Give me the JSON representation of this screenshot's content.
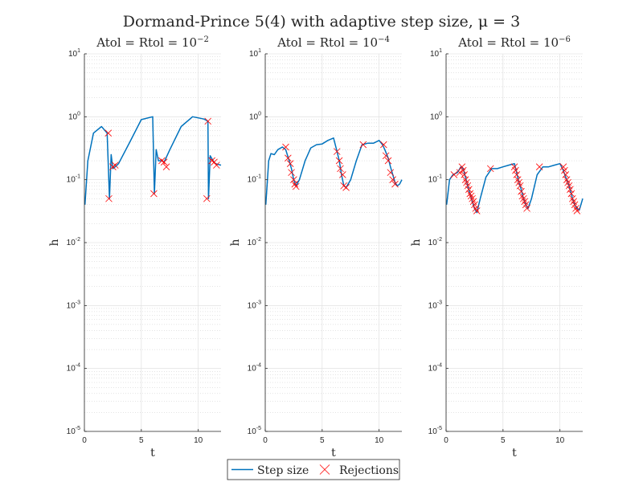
{
  "figure": {
    "suptitle": "Dormand-Prince 5(4) with adaptive step size, μ = 3"
  },
  "chart_data": [
    {
      "type": "line",
      "title": "Atol = Rtol = 10",
      "title_exponent": "−2",
      "xlabel": "t",
      "ylabel": "h",
      "yscale": "log",
      "xlim": [
        0,
        12
      ],
      "ylim": [
        1e-05,
        10
      ],
      "xticks": [
        "0",
        "5",
        "10"
      ],
      "yticks": [
        {
          "base": "10",
          "exp": "-5"
        },
        {
          "base": "10",
          "exp": "-4"
        },
        {
          "base": "10",
          "exp": "-3"
        },
        {
          "base": "10",
          "exp": "-2"
        },
        {
          "base": "10",
          "exp": "-1"
        },
        {
          "base": "10",
          "exp": "0"
        },
        {
          "base": "10",
          "exp": "1"
        }
      ],
      "grid": true,
      "series": [
        {
          "name": "Step size",
          "style": "line",
          "color": "#0072BD",
          "x": [
            0.05,
            0.3,
            0.8,
            1.5,
            2.0,
            2.2,
            2.35,
            2.5,
            2.7,
            3.0,
            4.0,
            5.0,
            6.0,
            6.15,
            6.3,
            6.5,
            6.8,
            7.0,
            7.5,
            8.5,
            9.5,
            10.5,
            10.85,
            10.9,
            11.05,
            11.3,
            11.5,
            12.0
          ],
          "y": [
            0.04,
            0.2,
            0.55,
            0.7,
            0.55,
            0.05,
            0.25,
            0.15,
            0.16,
            0.18,
            0.4,
            0.9,
            1.0,
            0.06,
            0.3,
            0.2,
            0.2,
            0.19,
            0.3,
            0.7,
            1.0,
            0.92,
            0.85,
            0.05,
            0.24,
            0.2,
            0.18,
            0.17
          ]
        },
        {
          "name": "Rejections",
          "style": "marker",
          "marker": "x",
          "color": "#FF0000",
          "x": [
            2.1,
            2.15,
            2.5,
            2.7,
            6.1,
            6.8,
            7.0,
            7.2,
            10.75,
            10.85,
            11.2,
            11.4,
            11.6
          ],
          "y": [
            0.55,
            0.05,
            0.16,
            0.17,
            0.06,
            0.2,
            0.19,
            0.16,
            0.05,
            0.85,
            0.2,
            0.19,
            0.17
          ]
        }
      ]
    },
    {
      "type": "line",
      "title": "Atol = Rtol = 10",
      "title_exponent": "−4",
      "xlabel": "t",
      "ylabel": "h",
      "yscale": "log",
      "xlim": [
        0,
        12
      ],
      "ylim": [
        1e-05,
        10
      ],
      "xticks": [
        "0",
        "5",
        "10"
      ],
      "yticks": [
        {
          "base": "10",
          "exp": "-5"
        },
        {
          "base": "10",
          "exp": "-4"
        },
        {
          "base": "10",
          "exp": "-3"
        },
        {
          "base": "10",
          "exp": "-2"
        },
        {
          "base": "10",
          "exp": "-1"
        },
        {
          "base": "10",
          "exp": "0"
        },
        {
          "base": "10",
          "exp": "1"
        }
      ],
      "grid": true,
      "series": [
        {
          "name": "Step size",
          "style": "line",
          "color": "#0072BD",
          "x": [
            0.05,
            0.3,
            0.5,
            0.8,
            1.1,
            1.5,
            1.8,
            2.1,
            2.3,
            2.5,
            2.7,
            3.0,
            3.5,
            4.0,
            4.5,
            5.0,
            5.5,
            6.0,
            6.3,
            6.5,
            6.7,
            6.9,
            7.1,
            7.5,
            8.0,
            8.5,
            9.0,
            9.5,
            10.0,
            10.3,
            10.5,
            10.8,
            11.0,
            11.2,
            11.4,
            11.6,
            11.8,
            12.0
          ],
          "y": [
            0.04,
            0.2,
            0.26,
            0.25,
            0.3,
            0.33,
            0.3,
            0.2,
            0.15,
            0.1,
            0.08,
            0.1,
            0.2,
            0.32,
            0.36,
            0.37,
            0.42,
            0.46,
            0.28,
            0.2,
            0.12,
            0.08,
            0.075,
            0.1,
            0.2,
            0.36,
            0.38,
            0.38,
            0.42,
            0.36,
            0.3,
            0.22,
            0.16,
            0.12,
            0.09,
            0.08,
            0.085,
            0.1
          ]
        },
        {
          "name": "Rejections",
          "style": "marker",
          "marker": "x",
          "color": "#FF0000",
          "x": [
            1.8,
            2.0,
            2.2,
            2.3,
            2.5,
            2.6,
            2.7,
            6.3,
            6.5,
            6.6,
            6.8,
            6.9,
            7.1,
            8.6,
            10.4,
            10.6,
            10.8,
            11.0,
            11.2,
            11.4
          ],
          "y": [
            0.33,
            0.22,
            0.18,
            0.13,
            0.1,
            0.085,
            0.078,
            0.28,
            0.2,
            0.15,
            0.12,
            0.08,
            0.075,
            0.36,
            0.36,
            0.24,
            0.2,
            0.13,
            0.1,
            0.085
          ]
        }
      ]
    },
    {
      "type": "line",
      "title": "Atol = Rtol = 10",
      "title_exponent": "−6",
      "xlabel": "t",
      "ylabel": "h",
      "yscale": "log",
      "xlim": [
        0,
        12
      ],
      "ylim": [
        1e-05,
        10
      ],
      "xticks": [
        "0",
        "5",
        "10"
      ],
      "yticks": [
        {
          "base": "10",
          "exp": "-5"
        },
        {
          "base": "10",
          "exp": "-4"
        },
        {
          "base": "10",
          "exp": "-3"
        },
        {
          "base": "10",
          "exp": "-2"
        },
        {
          "base": "10",
          "exp": "-1"
        },
        {
          "base": "10",
          "exp": "0"
        },
        {
          "base": "10",
          "exp": "1"
        }
      ],
      "grid": true,
      "series": [
        {
          "name": "Step size",
          "style": "line",
          "color": "#0072BD",
          "x": [
            0.05,
            0.3,
            0.6,
            1.0,
            1.3,
            1.5,
            1.7,
            1.9,
            2.1,
            2.3,
            2.5,
            2.7,
            3.0,
            3.5,
            4.0,
            4.5,
            5.0,
            5.5,
            6.0,
            6.2,
            6.4,
            6.6,
            6.8,
            7.0,
            7.2,
            7.5,
            8.0,
            8.5,
            9.0,
            9.5,
            10.0,
            10.3,
            10.5,
            10.7,
            10.9,
            11.1,
            11.3,
            11.5,
            11.7,
            12.0
          ],
          "y": [
            0.04,
            0.1,
            0.12,
            0.13,
            0.16,
            0.15,
            0.11,
            0.08,
            0.06,
            0.045,
            0.035,
            0.03,
            0.05,
            0.11,
            0.15,
            0.15,
            0.16,
            0.17,
            0.18,
            0.13,
            0.09,
            0.07,
            0.05,
            0.04,
            0.035,
            0.05,
            0.12,
            0.16,
            0.16,
            0.17,
            0.18,
            0.14,
            0.11,
            0.09,
            0.07,
            0.05,
            0.04,
            0.035,
            0.033,
            0.05
          ]
        },
        {
          "name": "Rejections",
          "style": "marker",
          "marker": "x",
          "color": "#FF0000",
          "x": [
            0.7,
            1.2,
            1.4,
            1.5,
            1.6,
            1.7,
            1.8,
            1.9,
            2.0,
            2.1,
            2.2,
            2.3,
            2.4,
            2.5,
            2.6,
            2.7,
            3.9,
            6.0,
            6.1,
            6.2,
            6.3,
            6.4,
            6.5,
            6.6,
            6.7,
            6.8,
            6.9,
            7.0,
            7.1,
            8.2,
            10.3,
            10.4,
            10.5,
            10.6,
            10.7,
            10.8,
            10.9,
            11.0,
            11.1,
            11.2,
            11.3,
            11.4,
            11.5
          ],
          "y": [
            0.12,
            0.13,
            0.16,
            0.14,
            0.12,
            0.1,
            0.09,
            0.08,
            0.07,
            0.06,
            0.055,
            0.05,
            0.045,
            0.04,
            0.035,
            0.032,
            0.15,
            0.16,
            0.14,
            0.12,
            0.1,
            0.09,
            0.08,
            0.065,
            0.055,
            0.05,
            0.045,
            0.04,
            0.035,
            0.16,
            0.16,
            0.14,
            0.12,
            0.1,
            0.09,
            0.08,
            0.07,
            0.06,
            0.05,
            0.045,
            0.04,
            0.035,
            0.032
          ]
        }
      ]
    }
  ],
  "legend": {
    "placement": "bottom-center",
    "items": [
      {
        "label": "Step size",
        "kind": "line",
        "color": "#0072BD"
      },
      {
        "label": "Rejections",
        "kind": "x-marker",
        "color": "#FF0000"
      }
    ]
  }
}
